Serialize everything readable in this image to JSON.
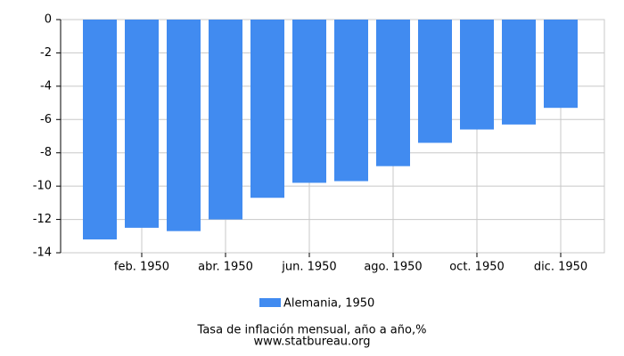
{
  "chart_data": {
    "type": "bar",
    "title": "Tasa de inflación mensual, año a año,%",
    "subtitle": "www.statbureau.org",
    "categories": [
      null,
      "feb. 1950",
      null,
      "abr. 1950",
      null,
      "jun. 1950",
      null,
      "ago. 1950",
      null,
      "oct. 1950",
      null,
      "dic. 1950"
    ],
    "series": [
      {
        "name": "Alemania, 1950",
        "color": "#418bf0",
        "values": [
          -13.2,
          -12.5,
          -12.7,
          -12.0,
          -10.7,
          -9.8,
          -9.7,
          -8.8,
          -7.4,
          -6.6,
          -6.3,
          -5.3
        ]
      }
    ],
    "ylim": [
      -14,
      0
    ],
    "yticks": [
      0,
      -2,
      -4,
      -6,
      -8,
      -10,
      -12,
      -14
    ],
    "grid": true
  }
}
